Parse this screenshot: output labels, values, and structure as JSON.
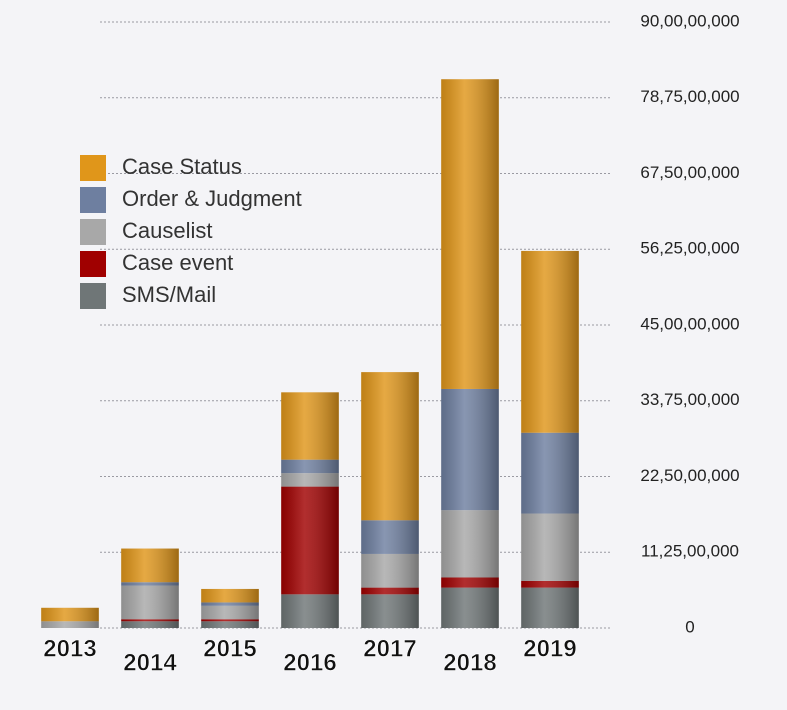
{
  "chart_data": {
    "type": "bar",
    "stacked": true,
    "categories": [
      "2013",
      "2014",
      "2015",
      "2016",
      "2017",
      "2018",
      "2019"
    ],
    "series": [
      {
        "name": "SMS/Mail",
        "color": "#6f7677",
        "values": [
          0,
          10000000,
          10000000,
          50000000,
          50000000,
          60000000,
          60000000
        ]
      },
      {
        "name": "Case event",
        "color": "#a00000",
        "values": [
          0,
          3000000,
          3000000,
          160000000,
          10000000,
          15000000,
          10000000
        ]
      },
      {
        "name": "Causelist",
        "color": "#a8a8a8",
        "values": [
          10000000,
          50000000,
          20000000,
          20000000,
          50000000,
          100000000,
          100000000
        ]
      },
      {
        "name": "Order & Judgment",
        "color": "#6e7fa0",
        "values": [
          0,
          5000000,
          5000000,
          20000000,
          50000000,
          180000000,
          120000000
        ]
      },
      {
        "name": "Case Status",
        "color": "#e0961a",
        "values": [
          20000000,
          50000000,
          20000000,
          100000000,
          220000000,
          460000000,
          270000000
        ]
      }
    ],
    "ylim": [
      0,
      900000000
    ],
    "yticks": [
      0,
      {
        "value": 112500000,
        "label": "11,25,00,000"
      },
      {
        "value": 225000000,
        "label": "22,50,00,000"
      },
      {
        "value": 337500000,
        "label": "33,75,00,000"
      },
      {
        "value": 450000000,
        "label": "45,00,00,000"
      },
      {
        "value": 562500000,
        "label": "56,25,00,000"
      },
      {
        "value": 675000000,
        "label": "67,50,00,000"
      },
      {
        "value": 787500000,
        "label": "78,75,00,000"
      },
      {
        "value": 900000000,
        "label": "90,00,00,000"
      }
    ],
    "grid": true,
    "legend": "upper-left"
  }
}
